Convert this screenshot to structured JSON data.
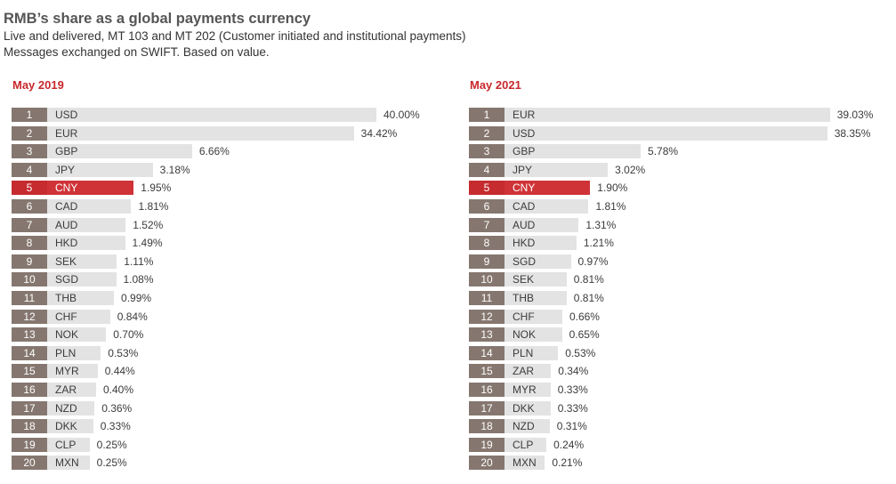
{
  "header": {
    "title": "RMB’s share as a global payments currency",
    "subtitle1": "Live and delivered,  MT 103 and MT 202 (Customer initiated and institutional payments)",
    "subtitle2": "Messages exchanged on SWIFT. Based on value."
  },
  "colors": {
    "rank_box": "#85776f",
    "bar": "#e3e3e3",
    "highlight_bar": "#cf3337",
    "highlight_rank": "#c52b2f",
    "panel_title": "#c8282c"
  },
  "chart_data": [
    {
      "type": "bar",
      "orientation": "horizontal",
      "title": "May 2019",
      "highlight": "CNY",
      "ranks": [
        "1",
        "2",
        "3",
        "4",
        "5",
        "6",
        "7",
        "8",
        "9",
        "10",
        "11",
        "12",
        "13",
        "14",
        "15",
        "16",
        "17",
        "18",
        "19",
        "20"
      ],
      "categories": [
        "USD",
        "EUR",
        "GBP",
        "JPY",
        "CNY",
        "CAD",
        "AUD",
        "HKD",
        "SEK",
        "SGD",
        "THB",
        "CHF",
        "NOK",
        "PLN",
        "MYR",
        "ZAR",
        "NZD",
        "DKK",
        "CLP",
        "MXN"
      ],
      "labels": [
        "40.00%",
        "34.42%",
        "6.66%",
        "3.18%",
        "1.95%",
        "1.81%",
        "1.52%",
        "1.49%",
        "1.11%",
        "1.08%",
        "0.99%",
        "0.84%",
        "0.70%",
        "0.53%",
        "0.44%",
        "0.40%",
        "0.36%",
        "0.33%",
        "0.25%",
        "0.25%"
      ],
      "values": [
        40.0,
        34.42,
        6.66,
        3.18,
        1.95,
        1.81,
        1.52,
        1.49,
        1.11,
        1.08,
        0.99,
        0.84,
        0.7,
        0.53,
        0.44,
        0.4,
        0.36,
        0.33,
        0.25,
        0.25
      ]
    },
    {
      "type": "bar",
      "orientation": "horizontal",
      "title": "May 2021",
      "highlight": "CNY",
      "ranks": [
        "1",
        "2",
        "3",
        "4",
        "5",
        "6",
        "7",
        "8",
        "9",
        "10",
        "11",
        "12",
        "13",
        "14",
        "15",
        "16",
        "17",
        "18",
        "19",
        "20"
      ],
      "categories": [
        "EUR",
        "USD",
        "GBP",
        "JPY",
        "CNY",
        "CAD",
        "AUD",
        "HKD",
        "SGD",
        "SEK",
        "THB",
        "CHF",
        "NOK",
        "PLN",
        "ZAR",
        "MYR",
        "DKK",
        "NZD",
        "CLP",
        "MXN"
      ],
      "labels": [
        "39.03%",
        "38.35%",
        "5.78%",
        "3.02%",
        "1.90%",
        "1.81%",
        "1.31%",
        "1.21%",
        "0.97%",
        "0.81%",
        "0.81%",
        "0.66%",
        "0.65%",
        "0.53%",
        "0.34%",
        "0.33%",
        "0.33%",
        "0.31%",
        "0.24%",
        "0.21%"
      ],
      "values": [
        39.03,
        38.35,
        5.78,
        3.02,
        1.9,
        1.81,
        1.31,
        1.21,
        0.97,
        0.81,
        0.81,
        0.66,
        0.65,
        0.53,
        0.34,
        0.33,
        0.33,
        0.31,
        0.24,
        0.21
      ]
    }
  ]
}
